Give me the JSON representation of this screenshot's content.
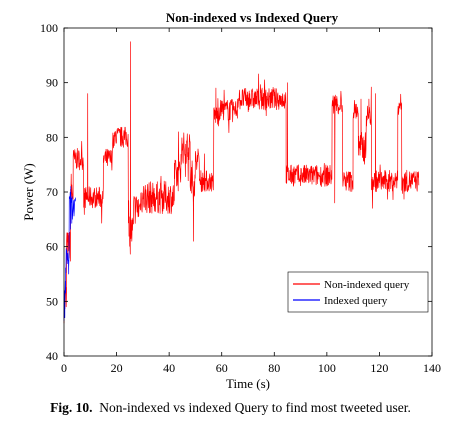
{
  "chart_data": {
    "type": "line",
    "title": "Non-indexed vs Indexed Query",
    "xlabel": "Time (s)",
    "ylabel": "Power (W)",
    "xlim": [
      0,
      140
    ],
    "ylim": [
      40,
      100
    ],
    "xticks": [
      0,
      20,
      40,
      60,
      80,
      100,
      120,
      140
    ],
    "yticks": [
      40,
      50,
      60,
      70,
      80,
      90,
      100
    ],
    "grid": false,
    "legend_position": "bottom-right",
    "series": [
      {
        "name": "Non-indexed query",
        "color": "#ff0000",
        "segments": [
          {
            "x0": 0,
            "x1": 1,
            "level": 50,
            "amp": 4
          },
          {
            "x0": 1,
            "x1": 2.5,
            "level": 60,
            "amp": 3
          },
          {
            "x0": 2.5,
            "x1": 3.5,
            "level": 70,
            "amp": 4
          },
          {
            "x0": 3.5,
            "x1": 7.5,
            "level": 76,
            "amp": 2
          },
          {
            "x0": 7.5,
            "x1": 15,
            "level": 69,
            "amp": 2
          },
          {
            "x0": 15,
            "x1": 18.5,
            "level": 76,
            "amp": 2
          },
          {
            "x0": 18.5,
            "x1": 24.5,
            "level": 80,
            "amp": 2
          },
          {
            "x0": 24.5,
            "x1": 26.5,
            "level": 63,
            "amp": 3
          },
          {
            "x0": 26.5,
            "x1": 29,
            "level": 67,
            "amp": 3
          },
          {
            "x0": 29,
            "x1": 42,
            "level": 69,
            "amp": 3
          },
          {
            "x0": 42,
            "x1": 44.5,
            "level": 73,
            "amp": 3
          },
          {
            "x0": 44.5,
            "x1": 48,
            "level": 78,
            "amp": 3
          },
          {
            "x0": 48,
            "x1": 50,
            "level": 72,
            "amp": 4
          },
          {
            "x0": 50,
            "x1": 51.5,
            "level": 76,
            "amp": 2
          },
          {
            "x0": 51.5,
            "x1": 57,
            "level": 72,
            "amp": 2
          },
          {
            "x0": 57,
            "x1": 59,
            "level": 84,
            "amp": 2
          },
          {
            "x0": 59,
            "x1": 66,
            "level": 85,
            "amp": 2
          },
          {
            "x0": 66,
            "x1": 84.5,
            "level": 87,
            "amp": 2
          },
          {
            "x0": 84.5,
            "x1": 100,
            "level": 73,
            "amp": 2
          },
          {
            "x0": 100,
            "x1": 102,
            "level": 73,
            "amp": 2
          },
          {
            "x0": 102,
            "x1": 106,
            "level": 86,
            "amp": 2
          },
          {
            "x0": 106,
            "x1": 110,
            "level": 72,
            "amp": 2
          },
          {
            "x0": 110,
            "x1": 112,
            "level": 85,
            "amp": 2
          },
          {
            "x0": 112,
            "x1": 115,
            "level": 78,
            "amp": 3
          },
          {
            "x0": 115,
            "x1": 117,
            "level": 84,
            "amp": 2
          },
          {
            "x0": 117,
            "x1": 127,
            "level": 72,
            "amp": 2
          },
          {
            "x0": 127,
            "x1": 128.5,
            "level": 86,
            "amp": 2
          },
          {
            "x0": 128.5,
            "x1": 135,
            "level": 72,
            "amp": 2
          }
        ],
        "spikes": [
          {
            "x": 9,
            "y": 88
          },
          {
            "x": 25.3,
            "y": 97.5
          },
          {
            "x": 25.8,
            "y": 61
          },
          {
            "x": 49.3,
            "y": 61
          },
          {
            "x": 57.8,
            "y": 89
          },
          {
            "x": 85,
            "y": 90
          },
          {
            "x": 103,
            "y": 68
          },
          {
            "x": 113,
            "y": 87
          },
          {
            "x": 116,
            "y": 87
          },
          {
            "x": 118.5,
            "y": 88
          }
        ]
      },
      {
        "name": "Indexed query",
        "color": "#0000ff",
        "segments": [
          {
            "x0": 0,
            "x1": 0.6,
            "level": 50,
            "amp": 4
          },
          {
            "x0": 0.6,
            "x1": 2,
            "level": 58,
            "amp": 3
          },
          {
            "x0": 2,
            "x1": 3.2,
            "level": 66,
            "amp": 4
          },
          {
            "x0": 3.2,
            "x1": 4.5,
            "level": 67,
            "amp": 2
          }
        ],
        "spikes": [
          {
            "x": 0.3,
            "y": 47
          },
          {
            "x": 1.8,
            "y": 55
          },
          {
            "x": 2.6,
            "y": 71
          }
        ]
      }
    ]
  },
  "caption": {
    "label": "Fig. 10.",
    "text": "Non-indexed vs indexed Query to find most tweeted user."
  }
}
